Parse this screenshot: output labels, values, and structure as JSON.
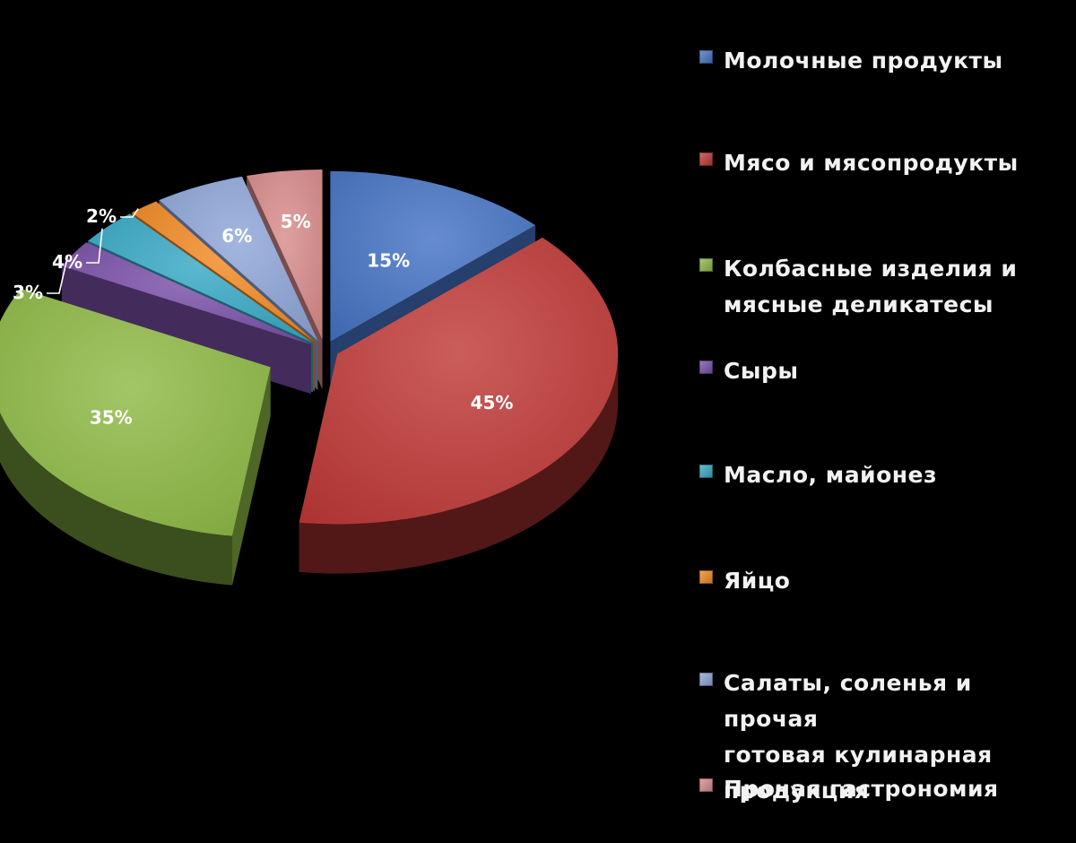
{
  "chart_data": {
    "type": "pie",
    "style": "3d-exploded",
    "legend_position": "right",
    "categories": [
      "Молочные продукты",
      "Мясо и мясопродукты",
      "Колбасные изделия и мясные деликатесы",
      "Сыры",
      "Масло, майонез",
      "Яйцо",
      "Салаты, соленья и прочая готовая кулинарная продукция",
      "Прочая гастрономия"
    ],
    "legend_lines": [
      [
        "Молочные продукты"
      ],
      [
        "Мясо и мясопродукты"
      ],
      [
        "Колбасные изделия и",
        "мясные деликатесы"
      ],
      [
        "Сыры"
      ],
      [
        "Масло, майонез"
      ],
      [
        "Яйцо"
      ],
      [
        "Салаты, соленья и прочая",
        "готовая кулинарная",
        "продукция"
      ],
      [
        "Прочая гастрономия"
      ]
    ],
    "values": [
      15,
      45,
      35,
      3,
      4,
      2,
      6,
      5
    ],
    "data_labels": [
      "15%",
      "45%",
      "35%",
      "3%",
      "4%",
      "2%",
      "6%",
      "5%"
    ],
    "colors": [
      "#4573c4",
      "#c03a37",
      "#8dba45",
      "#7a4fa8",
      "#37a9c6",
      "#f28a24",
      "#8ea6d8",
      "#d98b8b"
    ]
  }
}
